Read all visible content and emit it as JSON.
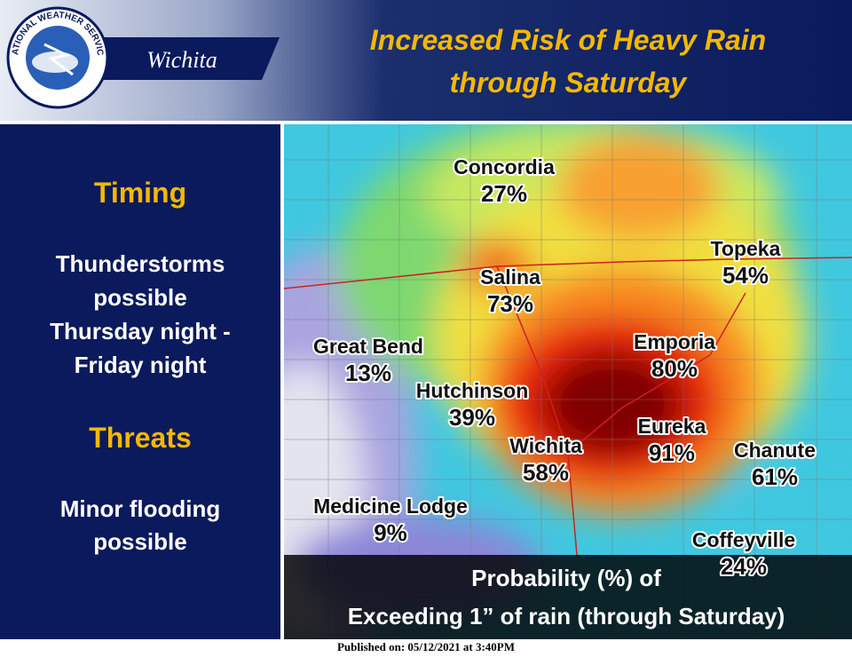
{
  "header": {
    "logo_text": "NATIONAL WEATHER SERVICE",
    "office": "Wichita",
    "title_lines": [
      "Increased Risk of Heavy Rain",
      "through Saturday"
    ]
  },
  "sidebar": {
    "sections": [
      {
        "heading": "Timing",
        "lines": [
          "Thunderstorms",
          "possible",
          "Thursday night -",
          "Friday night"
        ]
      },
      {
        "heading": "Threats",
        "lines": [
          "Minor flooding",
          "possible"
        ]
      }
    ]
  },
  "map": {
    "cities": [
      {
        "name": "Concordia",
        "probability": "27%"
      },
      {
        "name": "Salina",
        "probability": "73%"
      },
      {
        "name": "Topeka",
        "probability": "54%"
      },
      {
        "name": "Great Bend",
        "probability": "13%"
      },
      {
        "name": "Emporia",
        "probability": "80%"
      },
      {
        "name": "Hutchinson",
        "probability": "39%"
      },
      {
        "name": "Eureka",
        "probability": "91%"
      },
      {
        "name": "Wichita",
        "probability": "58%"
      },
      {
        "name": "Chanute",
        "probability": "61%"
      },
      {
        "name": "Medicine Lodge",
        "probability": "9%"
      },
      {
        "name": "Coffeyville",
        "probability": "24%"
      }
    ],
    "caption_lines": [
      "Probability (%) of",
      "Exceeding 1” of rain (through Saturday)"
    ]
  },
  "footer": {
    "published": "Published on: 05/12/2021 at 3:40PM"
  }
}
